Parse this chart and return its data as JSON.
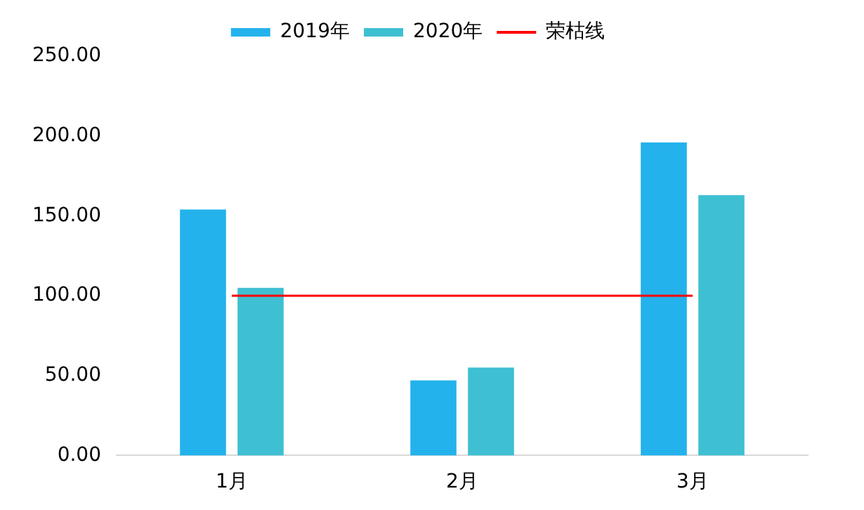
{
  "chart_data": {
    "type": "bar",
    "categories": [
      "1月",
      "2月",
      "3月"
    ],
    "series": [
      {
        "name": "2019年",
        "color": "#23b2ec",
        "values": [
          154,
          47,
          196
        ]
      },
      {
        "name": "2020年",
        "color": "#3ec0d2",
        "values": [
          105,
          55,
          163
        ]
      },
      {
        "name": "荣枯线",
        "type": "line",
        "color": "#ff0000",
        "values": [
          100,
          100,
          100
        ],
        "marker": "none"
      }
    ],
    "ylim": [
      0,
      250
    ],
    "yticks": [
      {
        "value": 0,
        "label": "0.00"
      },
      {
        "value": 50,
        "label": "50.00"
      },
      {
        "value": 100,
        "label": "100.00"
      },
      {
        "value": 150,
        "label": "150.00"
      },
      {
        "value": 200,
        "label": "200.00"
      },
      {
        "value": 250,
        "label": "250.00"
      }
    ],
    "grid": false,
    "legend": "top"
  }
}
